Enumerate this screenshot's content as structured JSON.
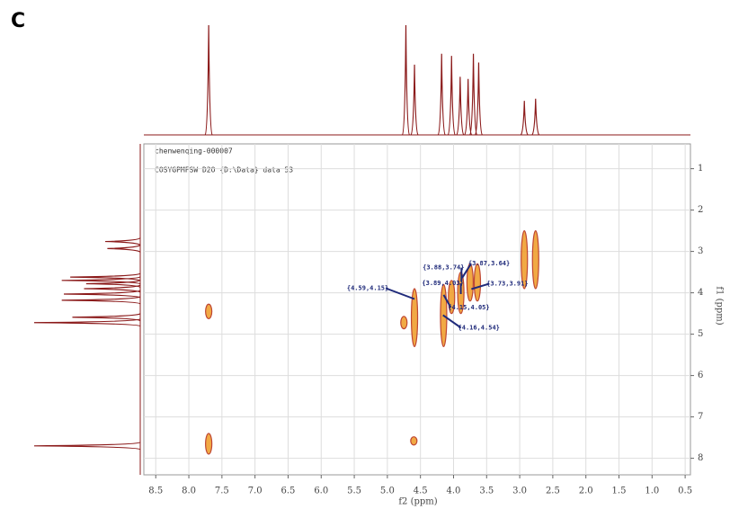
{
  "chart_data": {
    "type": "scatter",
    "panel_label": "C",
    "header_lines": [
      "chenwenqing-000007",
      "COSYGPMFSW D2O {D:\\Data} data 53"
    ],
    "xlabel": "f2 (ppm)",
    "ylabel": "f1 (ppm)",
    "xlim": [
      8.68,
      0.42
    ],
    "ylim": [
      8.4,
      0.4
    ],
    "xticks": [
      8.5,
      {
        "value": 8,
        "label": "8.0"
      },
      7.5,
      {
        "value": 7,
        "label": "7.0"
      },
      6.5,
      {
        "value": 6,
        "label": "6.0"
      },
      5.5,
      {
        "value": 5,
        "label": "5.0"
      },
      4.5,
      {
        "value": 4,
        "label": "4.0"
      },
      3.5,
      {
        "value": 3,
        "label": "3.0"
      },
      2.5,
      {
        "value": 2,
        "label": "2.0"
      },
      1.5,
      {
        "value": 1,
        "label": "1.0"
      },
      0.5
    ],
    "yticks": [
      1,
      2,
      3,
      4,
      5,
      6,
      7,
      8
    ],
    "grid": true,
    "peak_color": "#f0a030",
    "peak_edge_color": "#b8321e",
    "x": [
      7.7,
      7.7,
      4.59,
      4.6,
      4.15,
      4.03,
      3.89,
      3.75,
      3.64,
      2.93,
      2.76,
      4.75
    ],
    "values": [
      4.45,
      7.65,
      4.6,
      7.58,
      4.55,
      4.1,
      4.0,
      3.75,
      3.75,
      3.2,
      3.2,
      4.72
    ],
    "extents": [
      0.35,
      0.5,
      1.4,
      0.2,
      1.5,
      0.8,
      1.0,
      0.9,
      0.9,
      1.4,
      1.4,
      0.3
    ],
    "annotations": [
      {
        "text": "{4.59,4.15}",
        "x": 4.59,
        "y": 4.15
      },
      {
        "text": "{3.88,3.74}",
        "x": 3.88,
        "y": 3.74
      },
      {
        "text": "{3.89,4.03}",
        "x": 3.89,
        "y": 4.03
      },
      {
        "text": "{3.87,3.64}",
        "x": 3.87,
        "y": 3.64
      },
      {
        "text": "{3.73,3.91}",
        "x": 3.73,
        "y": 3.91
      },
      {
        "text": "{4.15,4.05}",
        "x": 4.15,
        "y": 4.05
      },
      {
        "text": "{4.16,4.54}",
        "x": 4.16,
        "y": 4.54
      }
    ],
    "annotation_color": "#1f2a7a",
    "projection_color": "#8b1a1a",
    "projection": {
      "x": [
        7.7,
        4.72,
        4.59,
        4.18,
        4.03,
        3.9,
        3.78,
        3.7,
        3.62,
        2.93,
        2.76
      ],
      "intensity": [
        100,
        100,
        64,
        74,
        72,
        53,
        51,
        74,
        66,
        31,
        33
      ]
    }
  }
}
